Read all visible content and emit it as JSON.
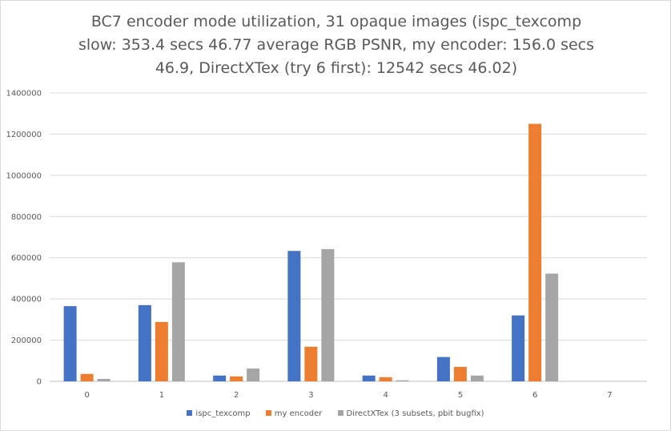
{
  "chart_data": {
    "type": "bar",
    "title_lines": [
      "BC7 encoder mode utilization, 31 opaque images (ispc_texcomp",
      "slow: 353.4 secs 46.77 average RGB PSNR, my encoder: 156.0 secs",
      "46.9, DirectXTex (try 6 first): 12542 secs 46.02)"
    ],
    "categories": [
      "0",
      "1",
      "2",
      "3",
      "4",
      "5",
      "6",
      "7"
    ],
    "series": [
      {
        "name": "ispc_texcomp",
        "color": "#4472c4",
        "values": [
          365000,
          370000,
          28000,
          633000,
          28000,
          118000,
          320000,
          0
        ]
      },
      {
        "name": "my encoder",
        "color": "#ed7d31",
        "values": [
          36000,
          288000,
          24000,
          168000,
          20000,
          70000,
          1250000,
          0
        ]
      },
      {
        "name": "DirectXTex (3 subsets, pbit bugfix)",
        "color": "#a5a5a5",
        "values": [
          12000,
          578000,
          62000,
          642000,
          5000,
          28000,
          523000,
          0
        ]
      }
    ],
    "ylim": [
      0,
      1400000
    ],
    "yticks": [
      "0",
      "200000",
      "400000",
      "600000",
      "800000",
      "1000000",
      "1200000",
      "1400000"
    ],
    "grid": true,
    "legend_position": "bottom"
  }
}
